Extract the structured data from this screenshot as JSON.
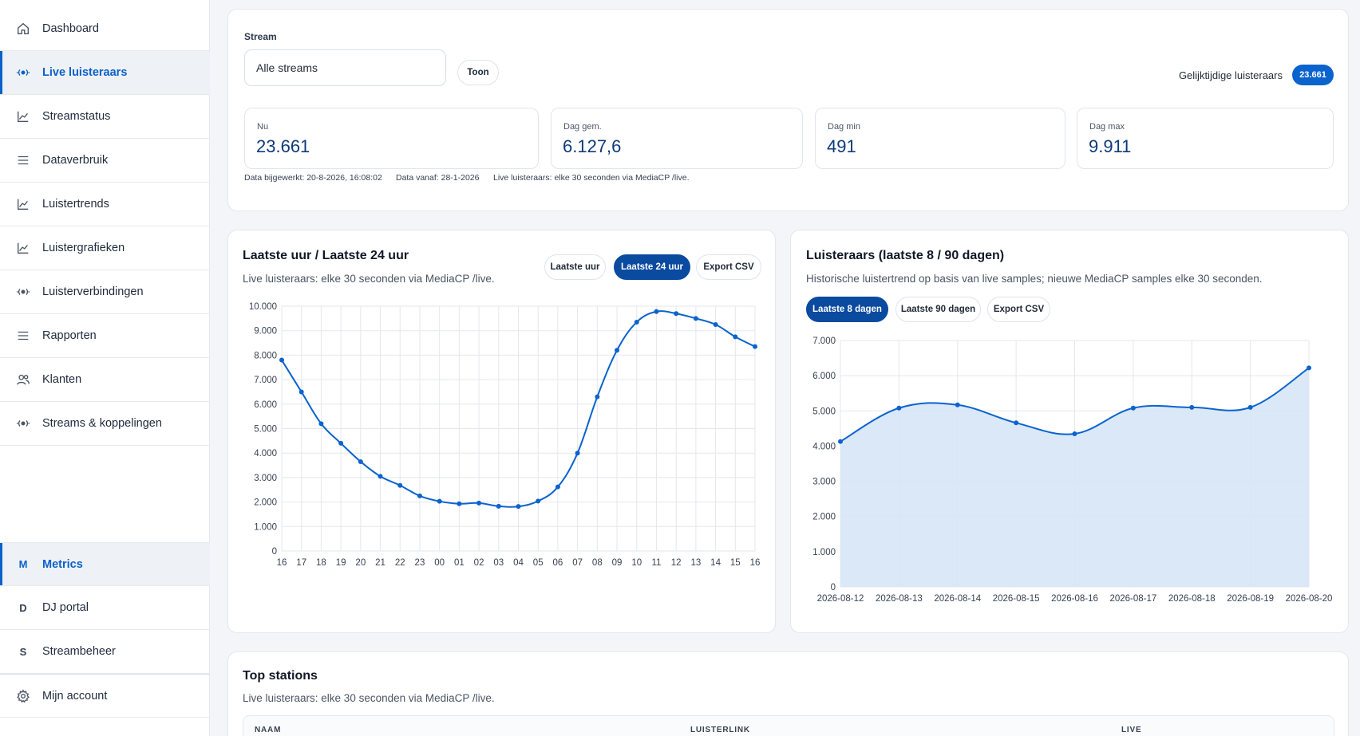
{
  "sidebar": {
    "items": [
      {
        "label": "Dashboard",
        "icon": "home-icon"
      },
      {
        "label": "Live luisteraars",
        "icon": "broadcast-icon",
        "active": true
      },
      {
        "label": "Streamstatus",
        "icon": "line-chart-icon"
      },
      {
        "label": "Dataverbruik",
        "icon": "menu-icon"
      },
      {
        "label": "Luistertrends",
        "icon": "line-chart-icon"
      },
      {
        "label": "Luistergrafieken",
        "icon": "line-chart-icon"
      },
      {
        "label": "Luisterverbindingen",
        "icon": "broadcast-icon"
      },
      {
        "label": "Rapporten",
        "icon": "menu-icon"
      },
      {
        "label": "Klanten",
        "icon": "users-icon"
      },
      {
        "label": "Streams & koppelingen",
        "icon": "broadcast-icon"
      }
    ],
    "bottom_items": [
      {
        "letter": "M",
        "label": "Metrics",
        "active": true
      },
      {
        "letter": "D",
        "label": "DJ portal"
      },
      {
        "letter": "S",
        "label": "Streambeheer"
      },
      {
        "label": "Mijn account",
        "icon": "gear-icon"
      }
    ]
  },
  "stream": {
    "label": "Stream",
    "select_value": "Alle streams",
    "show_button": "Toon",
    "concurrent_label": "Gelijktijdige luisteraars",
    "concurrent_value": "23.661",
    "stats": [
      {
        "label": "Nu",
        "value": "23.661"
      },
      {
        "label": "Dag gem.",
        "value": "6.127,6"
      },
      {
        "label": "Dag min",
        "value": "491"
      },
      {
        "label": "Dag max",
        "value": "9.911"
      }
    ],
    "meta": {
      "updated": "Data bijgewerkt: 20-8-2026, 16:08:02",
      "since": "Data vanaf: 28-1-2026",
      "interval": "Live luisteraars: elke 30 seconden via MediaCP /live."
    }
  },
  "hourly": {
    "title": "Laatste uur / Laatste 24 uur",
    "subtitle": "Live luisteraars: elke 30 seconden via MediaCP /live.",
    "buttons": [
      "Laatste uur",
      "Laatste 24 uur",
      "Export CSV"
    ]
  },
  "history": {
    "title": "Luisteraars (laatste 8 / 90 dagen)",
    "subtitle": "Historische luistertrend op basis van live samples; nieuwe MediaCP samples elke 30 seconden.",
    "buttons": [
      "Laatste 8 dagen",
      "Laatste 90 dagen",
      "Export CSV"
    ]
  },
  "top_stations": {
    "title": "Top stations",
    "subtitle": "Live luisteraars: elke 30 seconden via MediaCP /live.",
    "columns": [
      "NAAM",
      "LUISTERLINK",
      "LIVE"
    ]
  },
  "colors": {
    "accent": "#0b63ce",
    "dark_accent": "#0a4a9f",
    "area_fill": "#d6e6f7"
  },
  "chart_data": [
    {
      "type": "line",
      "categories": [
        "16",
        "17",
        "18",
        "19",
        "20",
        "21",
        "22",
        "23",
        "00",
        "01",
        "02",
        "03",
        "04",
        "05",
        "06",
        "07",
        "08",
        "09",
        "10",
        "11",
        "12",
        "13",
        "14",
        "15",
        "16"
      ],
      "values": [
        7800,
        6500,
        5200,
        4400,
        3650,
        3050,
        2680,
        2250,
        2030,
        1930,
        1960,
        1830,
        1820,
        2040,
        2620,
        4000,
        6300,
        8200,
        9350,
        9780,
        9700,
        9500,
        9250,
        8750,
        8350
      ],
      "ylim": [
        0,
        10000
      ],
      "yticks": [
        "0",
        "1.000",
        "2.000",
        "3.000",
        "4.000",
        "5.000",
        "6.000",
        "7.000",
        "8.000",
        "9.000",
        "10.000"
      ],
      "grid": true
    },
    {
      "type": "area",
      "categories": [
        "2026-08-12",
        "2026-08-13",
        "2026-08-14",
        "2026-08-15",
        "2026-08-16",
        "2026-08-17",
        "2026-08-18",
        "2026-08-19",
        "2026-08-20"
      ],
      "values": [
        4130,
        5080,
        5170,
        4660,
        4350,
        5080,
        5100,
        5100,
        6220
      ],
      "ylim": [
        0,
        7000
      ],
      "yticks": [
        "0",
        "1.000",
        "2.000",
        "3.000",
        "4.000",
        "5.000",
        "6.000",
        "7.000"
      ],
      "grid": true
    }
  ]
}
